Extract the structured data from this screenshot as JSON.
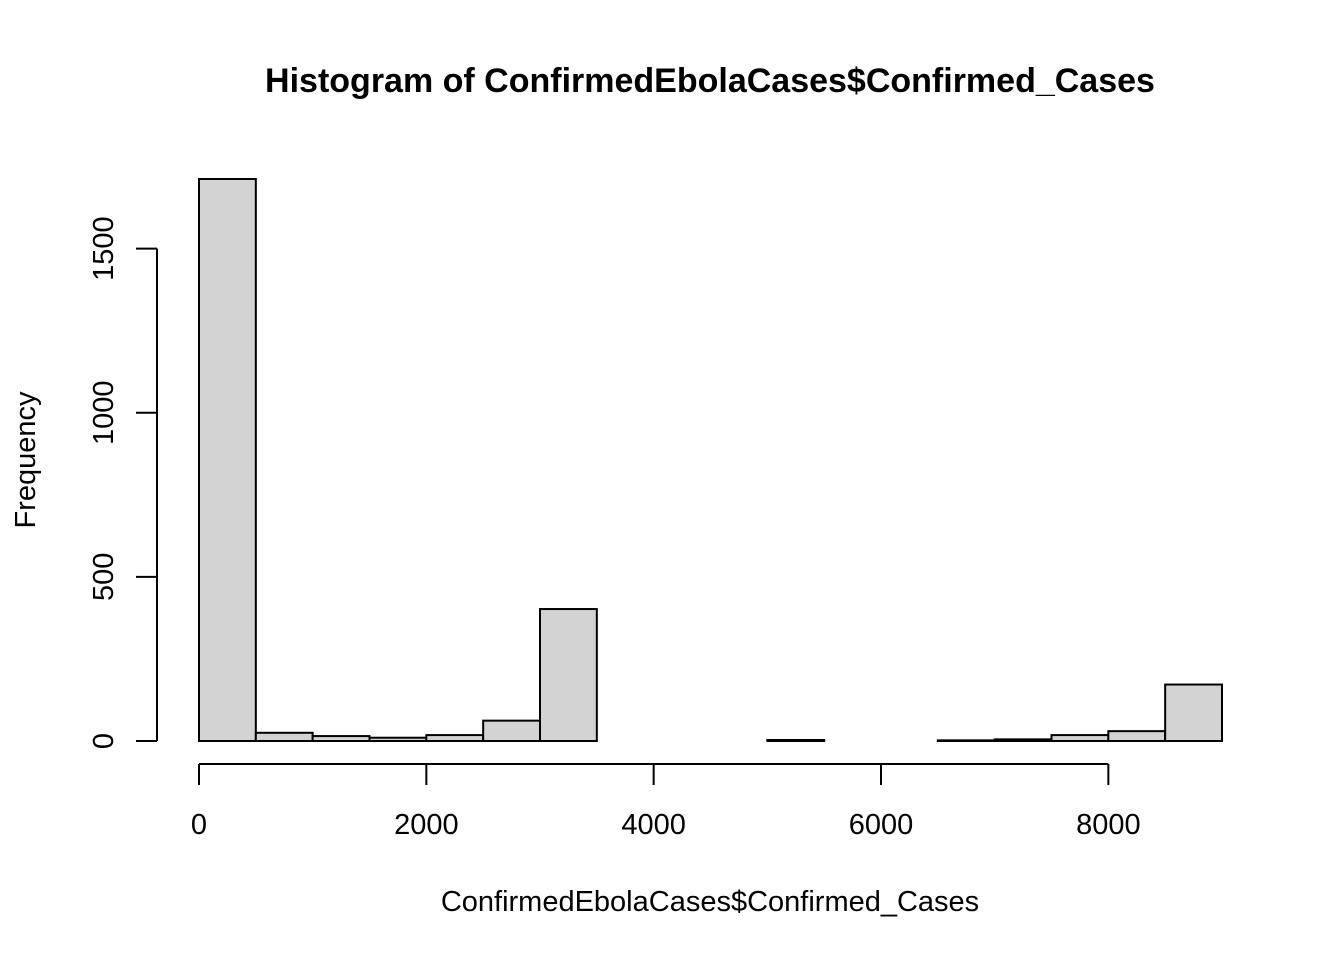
{
  "chart_data": {
    "type": "bar",
    "title": "Histogram of ConfirmedEbolaCases$Confirmed_Cases",
    "xlabel": "ConfirmedEbolaCases$Confirmed_Cases",
    "ylabel": "Frequency",
    "bin_width": 500,
    "bin_edges": [
      0,
      500,
      1000,
      1500,
      2000,
      2500,
      3000,
      3500,
      4000,
      4500,
      5000,
      5500,
      6000,
      6500,
      7000,
      7500,
      8000,
      8500,
      9000
    ],
    "values": [
      1712,
      25,
      15,
      10,
      18,
      62,
      402,
      0,
      0,
      0,
      3,
      0,
      0,
      2,
      5,
      18,
      30,
      172
    ],
    "xlim": [
      0,
      9000
    ],
    "ylim": [
      0,
      1712
    ],
    "x_ticks": [
      0,
      2000,
      4000,
      6000,
      8000
    ],
    "x_tick_labels": [
      "0",
      "2000",
      "4000",
      "6000",
      "8000"
    ],
    "y_ticks": [
      0,
      500,
      1000,
      1500
    ],
    "y_tick_labels": [
      "0",
      "500",
      "1000",
      "1500"
    ],
    "bar_fill": "#d3d3d3",
    "bar_stroke": "#000000",
    "grid": false,
    "legend": "none"
  }
}
